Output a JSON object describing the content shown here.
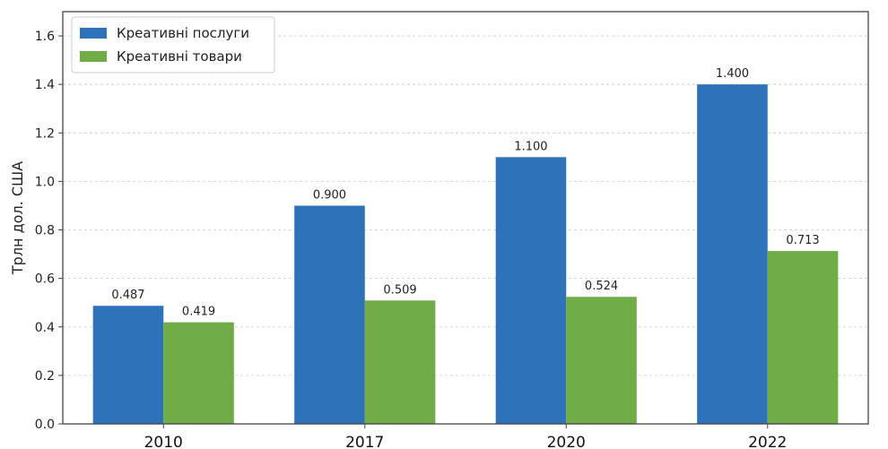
{
  "chart_data": {
    "type": "bar",
    "categories": [
      "2010",
      "2017",
      "2020",
      "2022"
    ],
    "series": [
      {
        "name": "Креативні послуги",
        "values": [
          0.487,
          0.9,
          1.1,
          1.4
        ],
        "labels": [
          "0.487",
          "0.900",
          "1.100",
          "1.400"
        ],
        "color": "#2e72ba"
      },
      {
        "name": "Креативні товари",
        "values": [
          0.419,
          0.509,
          0.524,
          0.713
        ],
        "labels": [
          "0.419",
          "0.509",
          "0.524",
          "0.713"
        ],
        "color": "#70ad47"
      }
    ],
    "xlabel": "",
    "ylabel": "Трлн дол. США",
    "ylim": [
      0,
      1.7
    ],
    "yticks": [
      0.0,
      0.2,
      0.4,
      0.6,
      0.8,
      1.0,
      1.2,
      1.4,
      1.6
    ],
    "ytick_labels": [
      "0.0",
      "0.2",
      "0.4",
      "0.6",
      "0.8",
      "1.0",
      "1.2",
      "1.4",
      "1.6"
    ],
    "grid": "y-dashed",
    "legend_position": "top-left"
  }
}
